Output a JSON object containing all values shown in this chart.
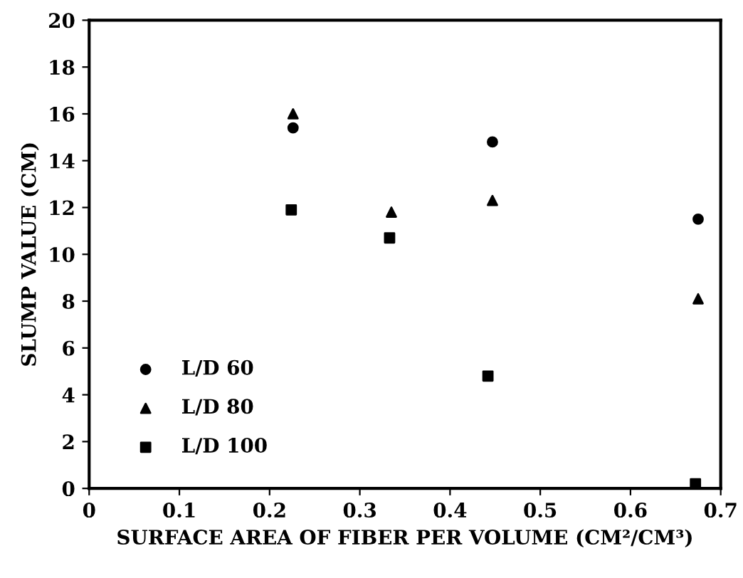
{
  "chart_data": {
    "type": "scatter",
    "xlabel": "SURFACE AREA OF FIBER PER VOLUME (CM²/CM³)",
    "ylabel": "SLUMP VALUE (CM)",
    "xlim": [
      0,
      0.7
    ],
    "xticks": [
      0,
      0.1,
      0.2,
      0.3,
      0.4,
      0.5,
      0.6,
      0.7
    ],
    "ylim": [
      0,
      20
    ],
    "yticks": [
      0,
      2,
      4,
      6,
      8,
      10,
      12,
      14,
      16,
      18,
      20
    ],
    "legend": "bottom left",
    "grid": false,
    "series": [
      {
        "name": "L/D 60",
        "color": "#000000",
        "marker": "circle",
        "x": [
          0.226,
          0.447,
          0.675
        ],
        "values": [
          15.4,
          14.8,
          11.5
        ]
      },
      {
        "name": "L/D 80",
        "color": "#000000",
        "marker": "triangle",
        "x": [
          0.226,
          0.335,
          0.447,
          0.675
        ],
        "values": [
          16.0,
          11.8,
          12.3,
          8.1
        ]
      },
      {
        "name": "L/D 100",
        "color": "#000000",
        "marker": "square",
        "x": [
          0.224,
          0.333,
          0.442,
          0.672
        ],
        "values": [
          11.9,
          10.7,
          4.8,
          0.2
        ]
      }
    ]
  }
}
